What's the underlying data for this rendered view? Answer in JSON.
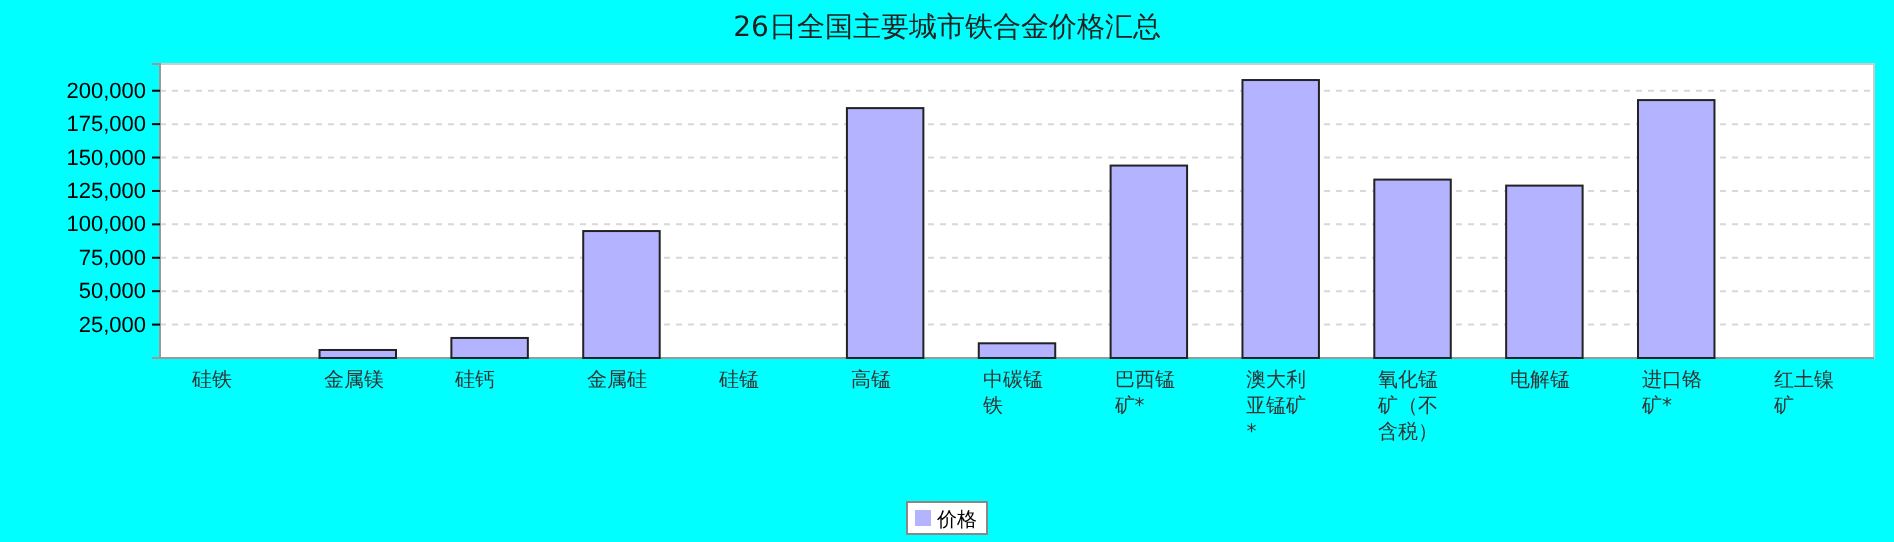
{
  "chart_data": {
    "type": "bar",
    "title": "26日全国主要城市铁合金价格汇总",
    "categories": [
      "硅铁",
      "金属镁",
      "硅钙",
      "金属硅",
      "硅锰",
      "高锰",
      "中碳锰铁",
      "巴西锰矿*",
      "澳大利亚锰矿*",
      "氧化锰矿（不含税）",
      "电解锰",
      "进口铬矿*",
      "红土镍矿"
    ],
    "series": [
      {
        "name": "价格",
        "color": "#b3b3ff",
        "values": [
          null,
          6000,
          15000,
          95000,
          null,
          187000,
          11000,
          144000,
          208000,
          133500,
          129000,
          193000,
          null
        ]
      }
    ],
    "ylim": [
      0,
      220000
    ],
    "yticks": [
      {
        "value": 25000,
        "label": "25,000"
      },
      {
        "value": 50000,
        "label": "50,000"
      },
      {
        "value": 75000,
        "label": "75,000"
      },
      {
        "value": 100000,
        "label": "100,000"
      },
      {
        "value": 125000,
        "label": "125,000"
      },
      {
        "value": 150000,
        "label": "150,000"
      },
      {
        "value": 175000,
        "label": "175,000"
      },
      {
        "value": 200000,
        "label": "200,000"
      }
    ],
    "grid": "y",
    "legend": "bottom"
  }
}
